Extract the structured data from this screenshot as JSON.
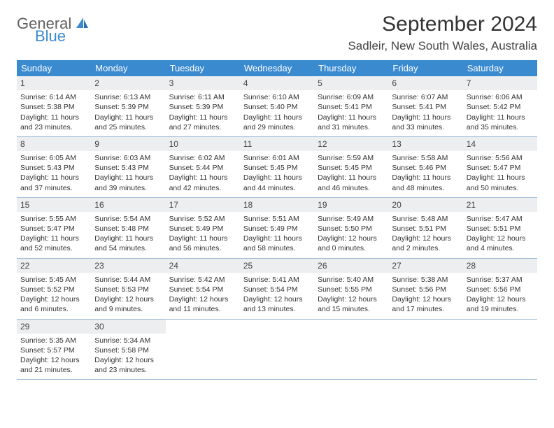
{
  "brand": {
    "line1": "General",
    "line2": "Blue"
  },
  "title": "September 2024",
  "location": "Sadleir, New South Wales, Australia",
  "colors": {
    "header_bg": "#3a8ad0",
    "daynum_bg": "#eceeef",
    "row_border": "#a0bcd8"
  },
  "day_headers": [
    "Sunday",
    "Monday",
    "Tuesday",
    "Wednesday",
    "Thursday",
    "Friday",
    "Saturday"
  ],
  "weeks": [
    [
      {
        "n": "1",
        "sr": "Sunrise: 6:14 AM",
        "ss": "Sunset: 5:38 PM",
        "d1": "Daylight: 11 hours",
        "d2": "and 23 minutes."
      },
      {
        "n": "2",
        "sr": "Sunrise: 6:13 AM",
        "ss": "Sunset: 5:39 PM",
        "d1": "Daylight: 11 hours",
        "d2": "and 25 minutes."
      },
      {
        "n": "3",
        "sr": "Sunrise: 6:11 AM",
        "ss": "Sunset: 5:39 PM",
        "d1": "Daylight: 11 hours",
        "d2": "and 27 minutes."
      },
      {
        "n": "4",
        "sr": "Sunrise: 6:10 AM",
        "ss": "Sunset: 5:40 PM",
        "d1": "Daylight: 11 hours",
        "d2": "and 29 minutes."
      },
      {
        "n": "5",
        "sr": "Sunrise: 6:09 AM",
        "ss": "Sunset: 5:41 PM",
        "d1": "Daylight: 11 hours",
        "d2": "and 31 minutes."
      },
      {
        "n": "6",
        "sr": "Sunrise: 6:07 AM",
        "ss": "Sunset: 5:41 PM",
        "d1": "Daylight: 11 hours",
        "d2": "and 33 minutes."
      },
      {
        "n": "7",
        "sr": "Sunrise: 6:06 AM",
        "ss": "Sunset: 5:42 PM",
        "d1": "Daylight: 11 hours",
        "d2": "and 35 minutes."
      }
    ],
    [
      {
        "n": "8",
        "sr": "Sunrise: 6:05 AM",
        "ss": "Sunset: 5:43 PM",
        "d1": "Daylight: 11 hours",
        "d2": "and 37 minutes."
      },
      {
        "n": "9",
        "sr": "Sunrise: 6:03 AM",
        "ss": "Sunset: 5:43 PM",
        "d1": "Daylight: 11 hours",
        "d2": "and 39 minutes."
      },
      {
        "n": "10",
        "sr": "Sunrise: 6:02 AM",
        "ss": "Sunset: 5:44 PM",
        "d1": "Daylight: 11 hours",
        "d2": "and 42 minutes."
      },
      {
        "n": "11",
        "sr": "Sunrise: 6:01 AM",
        "ss": "Sunset: 5:45 PM",
        "d1": "Daylight: 11 hours",
        "d2": "and 44 minutes."
      },
      {
        "n": "12",
        "sr": "Sunrise: 5:59 AM",
        "ss": "Sunset: 5:45 PM",
        "d1": "Daylight: 11 hours",
        "d2": "and 46 minutes."
      },
      {
        "n": "13",
        "sr": "Sunrise: 5:58 AM",
        "ss": "Sunset: 5:46 PM",
        "d1": "Daylight: 11 hours",
        "d2": "and 48 minutes."
      },
      {
        "n": "14",
        "sr": "Sunrise: 5:56 AM",
        "ss": "Sunset: 5:47 PM",
        "d1": "Daylight: 11 hours",
        "d2": "and 50 minutes."
      }
    ],
    [
      {
        "n": "15",
        "sr": "Sunrise: 5:55 AM",
        "ss": "Sunset: 5:47 PM",
        "d1": "Daylight: 11 hours",
        "d2": "and 52 minutes."
      },
      {
        "n": "16",
        "sr": "Sunrise: 5:54 AM",
        "ss": "Sunset: 5:48 PM",
        "d1": "Daylight: 11 hours",
        "d2": "and 54 minutes."
      },
      {
        "n": "17",
        "sr": "Sunrise: 5:52 AM",
        "ss": "Sunset: 5:49 PM",
        "d1": "Daylight: 11 hours",
        "d2": "and 56 minutes."
      },
      {
        "n": "18",
        "sr": "Sunrise: 5:51 AM",
        "ss": "Sunset: 5:49 PM",
        "d1": "Daylight: 11 hours",
        "d2": "and 58 minutes."
      },
      {
        "n": "19",
        "sr": "Sunrise: 5:49 AM",
        "ss": "Sunset: 5:50 PM",
        "d1": "Daylight: 12 hours",
        "d2": "and 0 minutes."
      },
      {
        "n": "20",
        "sr": "Sunrise: 5:48 AM",
        "ss": "Sunset: 5:51 PM",
        "d1": "Daylight: 12 hours",
        "d2": "and 2 minutes."
      },
      {
        "n": "21",
        "sr": "Sunrise: 5:47 AM",
        "ss": "Sunset: 5:51 PM",
        "d1": "Daylight: 12 hours",
        "d2": "and 4 minutes."
      }
    ],
    [
      {
        "n": "22",
        "sr": "Sunrise: 5:45 AM",
        "ss": "Sunset: 5:52 PM",
        "d1": "Daylight: 12 hours",
        "d2": "and 6 minutes."
      },
      {
        "n": "23",
        "sr": "Sunrise: 5:44 AM",
        "ss": "Sunset: 5:53 PM",
        "d1": "Daylight: 12 hours",
        "d2": "and 9 minutes."
      },
      {
        "n": "24",
        "sr": "Sunrise: 5:42 AM",
        "ss": "Sunset: 5:54 PM",
        "d1": "Daylight: 12 hours",
        "d2": "and 11 minutes."
      },
      {
        "n": "25",
        "sr": "Sunrise: 5:41 AM",
        "ss": "Sunset: 5:54 PM",
        "d1": "Daylight: 12 hours",
        "d2": "and 13 minutes."
      },
      {
        "n": "26",
        "sr": "Sunrise: 5:40 AM",
        "ss": "Sunset: 5:55 PM",
        "d1": "Daylight: 12 hours",
        "d2": "and 15 minutes."
      },
      {
        "n": "27",
        "sr": "Sunrise: 5:38 AM",
        "ss": "Sunset: 5:56 PM",
        "d1": "Daylight: 12 hours",
        "d2": "and 17 minutes."
      },
      {
        "n": "28",
        "sr": "Sunrise: 5:37 AM",
        "ss": "Sunset: 5:56 PM",
        "d1": "Daylight: 12 hours",
        "d2": "and 19 minutes."
      }
    ],
    [
      {
        "n": "29",
        "sr": "Sunrise: 5:35 AM",
        "ss": "Sunset: 5:57 PM",
        "d1": "Daylight: 12 hours",
        "d2": "and 21 minutes."
      },
      {
        "n": "30",
        "sr": "Sunrise: 5:34 AM",
        "ss": "Sunset: 5:58 PM",
        "d1": "Daylight: 12 hours",
        "d2": "and 23 minutes."
      },
      null,
      null,
      null,
      null,
      null
    ]
  ]
}
